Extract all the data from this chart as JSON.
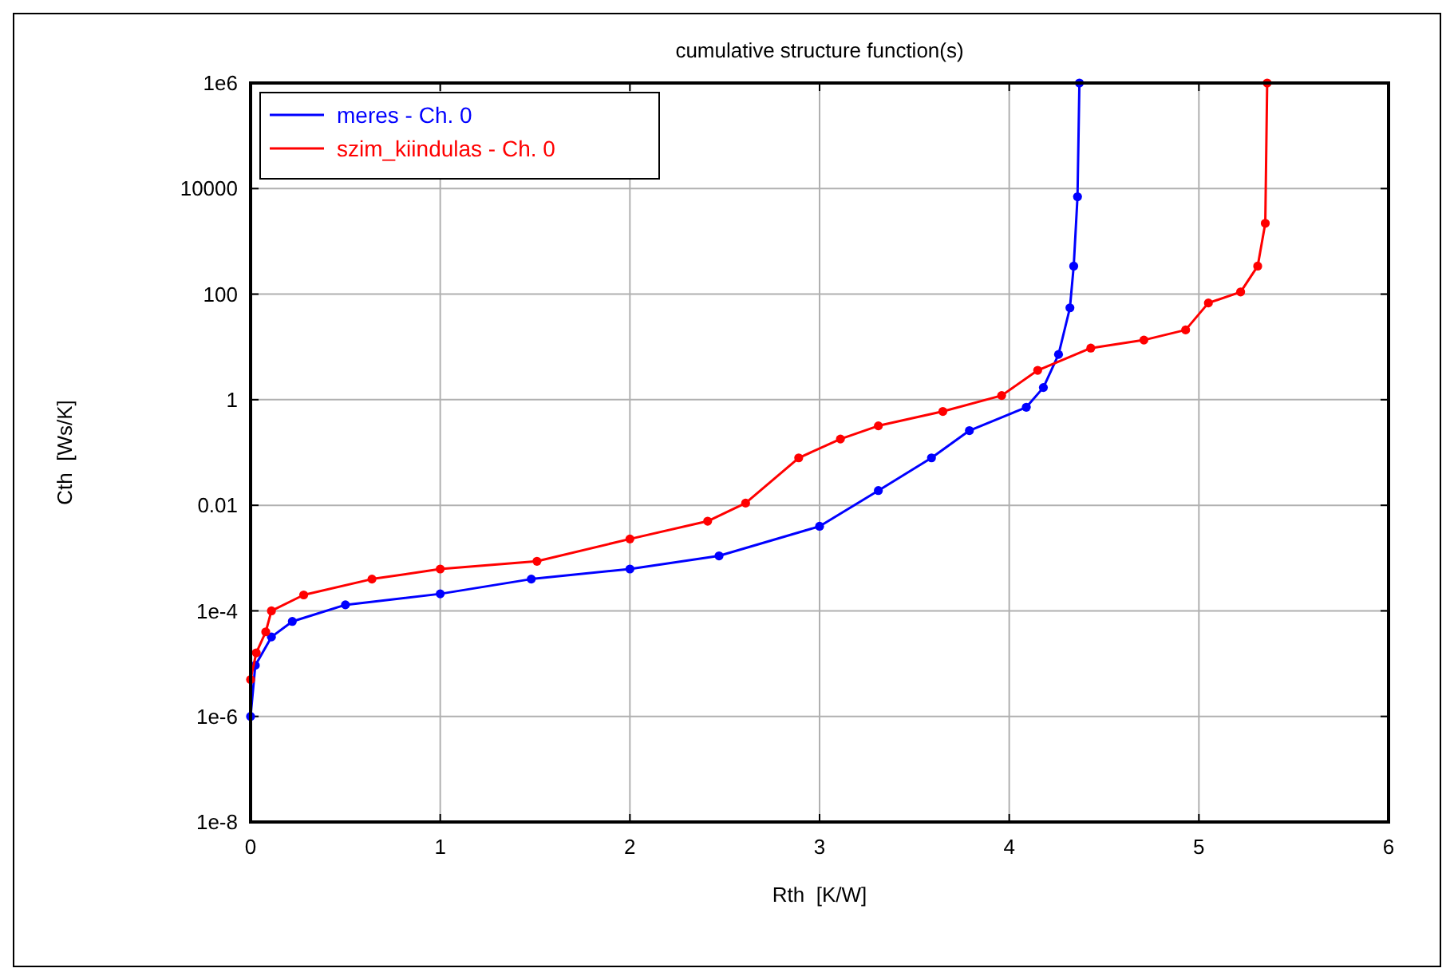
{
  "chart_data": {
    "type": "line",
    "title": "cumulative structure function(s)",
    "xlabel": "Rth  [K/W]",
    "ylabel": "Cth  [Ws/K]",
    "log": "y",
    "grid": true,
    "legend": "top left",
    "marker": "circle",
    "line_style": "solid",
    "xlim": [
      0,
      6
    ],
    "xticks": [
      0,
      1,
      2,
      3,
      4,
      5,
      6
    ],
    "ylim": [
      1e-08,
      1000000.0
    ],
    "yticks": [
      {
        "value": 1e-08,
        "label": "1e-8"
      },
      {
        "value": 1e-06,
        "label": "1e-6"
      },
      {
        "value": 0.0001,
        "label": "1e-4"
      },
      0.01,
      1,
      100,
      10000,
      {
        "value": 1000000.0,
        "label": "1e6"
      }
    ],
    "series": [
      {
        "name": "meres - Ch. 0",
        "color": "#0000ff",
        "x": [
          0,
          0.025,
          0.11,
          0.22,
          0.5,
          1.0,
          1.48,
          2.0,
          2.47,
          3.0,
          3.31,
          3.59,
          3.79,
          4.09,
          4.18,
          4.26,
          4.32,
          4.34,
          4.36,
          4.37
        ],
        "values": [
          1e-06,
          9.3e-06,
          3.2e-05,
          6.3e-05,
          0.00013,
          0.00021,
          0.0004,
          0.00062,
          0.0011,
          0.004,
          0.019,
          0.079,
          0.26,
          0.72,
          1.7,
          7.2,
          55,
          340,
          7000,
          1000000.0
        ]
      },
      {
        "name": "szim_kiindulas - Ch. 0",
        "color": "#ff0000",
        "x": [
          0,
          0.03,
          0.08,
          0.11,
          0.28,
          0.64,
          1.0,
          1.51,
          2.0,
          2.41,
          2.61,
          2.89,
          3.11,
          3.31,
          3.65,
          3.96,
          4.15,
          4.43,
          4.71,
          4.93,
          5.05,
          5.22,
          5.31,
          5.35,
          5.36
        ],
        "values": [
          5e-06,
          1.6e-05,
          4e-05,
          0.0001,
          0.0002,
          0.0004,
          0.00062,
          0.00087,
          0.0023,
          0.005,
          0.011,
          0.079,
          0.18,
          0.32,
          0.6,
          1.2,
          3.6,
          9.5,
          13.5,
          21,
          68,
          110,
          340,
          2200,
          1000000.0
        ]
      }
    ]
  }
}
